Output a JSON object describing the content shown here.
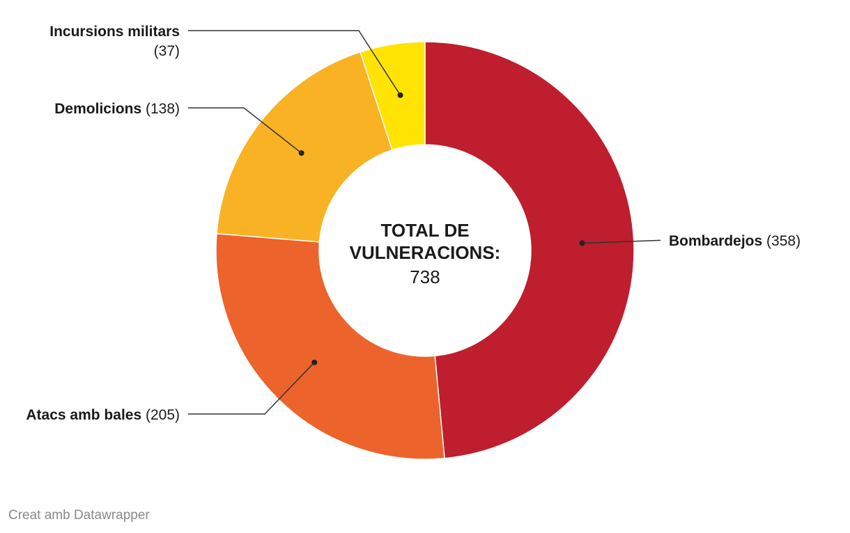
{
  "chart_data": {
    "type": "pie",
    "variant": "donut",
    "slices": [
      {
        "name": "Bombardejos",
        "value": 358,
        "value_label": "(358)",
        "color": "#be1e2d"
      },
      {
        "name": "Atacs amb bales",
        "value": 205,
        "value_label": "(205)",
        "color": "#ec632b"
      },
      {
        "name": "Demolicions",
        "value": 138,
        "value_label": "(138)",
        "color": "#f8b223"
      },
      {
        "name": "Incursions militars",
        "value": 37,
        "value_label": "(37)",
        "color": "#ffe303"
      }
    ],
    "center": {
      "title_line1": "TOTAL DE",
      "title_line2": "VULNERACIONS:",
      "value": "738"
    }
  },
  "credit": "Creat amb Datawrapper"
}
